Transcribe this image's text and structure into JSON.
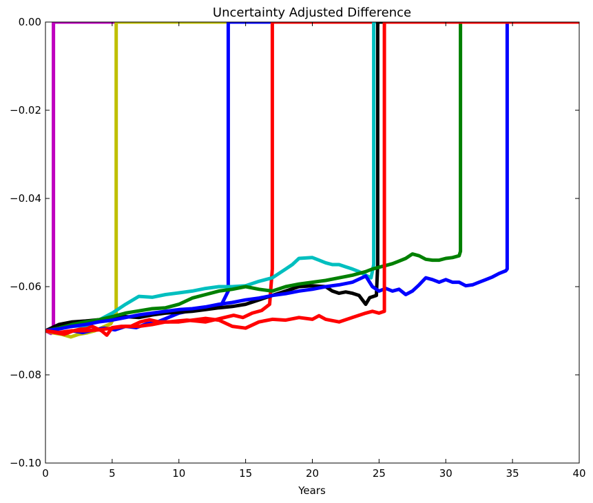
{
  "chart_data": {
    "type": "line",
    "title": "Uncertainty Adjusted Difference",
    "xlabel": "Years",
    "ylabel": "",
    "xlim": [
      0,
      40
    ],
    "ylim": [
      -0.1,
      0.0
    ],
    "xticks": [
      0,
      5,
      10,
      15,
      20,
      25,
      30,
      35,
      40
    ],
    "xtick_labels": [
      "0",
      "5",
      "10",
      "15",
      "20",
      "25",
      "30",
      "35",
      "40"
    ],
    "yticks": [
      0.0,
      -0.02,
      -0.04,
      -0.06,
      -0.08,
      -0.1
    ],
    "ytick_labels": [
      "0.00",
      "−0.02",
      "−0.04",
      "−0.06",
      "−0.08",
      "−0.10"
    ],
    "grid": false,
    "series": [
      {
        "color": "#bf00bf",
        "x": [
          0.0,
          0.2,
          0.4,
          0.55,
          0.6,
          0.6,
          40.0
        ],
        "y": [
          -0.07,
          -0.0703,
          -0.0706,
          -0.0702,
          -0.07,
          0.0,
          0.0
        ]
      },
      {
        "color": "#bfbf00",
        "x": [
          0.0,
          0.6,
          1.2,
          1.9,
          2.5,
          3.1,
          3.7,
          4.3,
          4.9,
          5.3,
          5.3,
          40.0
        ],
        "y": [
          -0.07,
          -0.0705,
          -0.0708,
          -0.0714,
          -0.0708,
          -0.0705,
          -0.07,
          -0.0692,
          -0.0684,
          -0.066,
          0.0,
          0.0
        ]
      },
      {
        "color": "#0000ff",
        "x": [
          0.0,
          0.6,
          1.2,
          2.0,
          2.8,
          3.6,
          4.4,
          5.2,
          6.0,
          6.8,
          7.6,
          8.4,
          9.2,
          10.0,
          10.8,
          11.6,
          12.4,
          13.2,
          13.7,
          13.7,
          40.0
        ],
        "y": [
          -0.07,
          -0.0702,
          -0.0706,
          -0.07,
          -0.0704,
          -0.0698,
          -0.0694,
          -0.0698,
          -0.069,
          -0.0693,
          -0.0684,
          -0.068,
          -0.067,
          -0.066,
          -0.0655,
          -0.065,
          -0.0646,
          -0.064,
          -0.061,
          0.0,
          0.0
        ]
      },
      {
        "color": "#ff0000",
        "x": [
          0.0,
          0.7,
          1.4,
          2.1,
          2.8,
          3.5,
          4.2,
          4.6,
          5.0,
          5.7,
          6.4,
          7.1,
          7.8,
          8.5,
          9.2,
          9.9,
          10.6,
          11.3,
          12.0,
          12.7,
          13.4,
          14.1,
          14.8,
          15.5,
          16.2,
          16.8,
          17.0,
          17.0,
          40.0
        ],
        "y": [
          -0.07,
          -0.0704,
          -0.0708,
          -0.07,
          -0.0695,
          -0.069,
          -0.07,
          -0.071,
          -0.0693,
          -0.069,
          -0.069,
          -0.068,
          -0.0675,
          -0.068,
          -0.068,
          -0.0678,
          -0.0676,
          -0.0678,
          -0.068,
          -0.0675,
          -0.067,
          -0.0665,
          -0.067,
          -0.066,
          -0.0654,
          -0.064,
          -0.056,
          0.0,
          0.0
        ]
      },
      {
        "color": "#00bfbf",
        "x": [
          0.0,
          1.0,
          2.0,
          3.0,
          4.0,
          5.0,
          6.0,
          7.0,
          8.0,
          9.0,
          10.0,
          11.0,
          12.0,
          13.0,
          14.0,
          15.0,
          16.0,
          17.0,
          17.5,
          18.0,
          18.5,
          19.0,
          19.5,
          20.0,
          20.5,
          21.0,
          21.5,
          22.0,
          22.5,
          23.0,
          23.5,
          24.0,
          24.4,
          24.6,
          24.6,
          40.0
        ],
        "y": [
          -0.07,
          -0.0694,
          -0.069,
          -0.0688,
          -0.0676,
          -0.066,
          -0.064,
          -0.0622,
          -0.0624,
          -0.0618,
          -0.0614,
          -0.061,
          -0.0604,
          -0.06,
          -0.06,
          -0.0598,
          -0.0588,
          -0.058,
          -0.057,
          -0.056,
          -0.055,
          -0.0536,
          -0.0535,
          -0.0534,
          -0.054,
          -0.0546,
          -0.055,
          -0.055,
          -0.0555,
          -0.056,
          -0.0566,
          -0.0574,
          -0.058,
          -0.055,
          0.0,
          0.0
        ]
      },
      {
        "color": "#000000",
        "x": [
          0.0,
          1.0,
          2.0,
          3.0,
          4.0,
          5.0,
          6.0,
          7.0,
          8.0,
          9.0,
          10.0,
          11.0,
          12.0,
          13.0,
          14.0,
          15.0,
          16.0,
          17.0,
          18.0,
          19.0,
          20.0,
          21.0,
          21.5,
          22.0,
          22.5,
          23.0,
          23.5,
          24.0,
          24.3,
          24.8,
          24.9,
          24.9,
          40.0
        ],
        "y": [
          -0.07,
          -0.0686,
          -0.068,
          -0.0678,
          -0.0675,
          -0.0672,
          -0.0668,
          -0.067,
          -0.0664,
          -0.066,
          -0.0658,
          -0.0656,
          -0.0652,
          -0.0648,
          -0.0645,
          -0.064,
          -0.063,
          -0.062,
          -0.061,
          -0.06,
          -0.0598,
          -0.06,
          -0.061,
          -0.0615,
          -0.0612,
          -0.0615,
          -0.062,
          -0.064,
          -0.0625,
          -0.062,
          -0.055,
          0.0,
          0.0
        ]
      },
      {
        "color": "#008000",
        "x": [
          0.0,
          1.0,
          2.0,
          3.0,
          4.0,
          5.0,
          6.0,
          7.0,
          8.0,
          9.0,
          10.0,
          11.0,
          12.0,
          13.0,
          14.0,
          15.0,
          16.0,
          17.0,
          18.0,
          19.0,
          20.0,
          21.0,
          22.0,
          23.0,
          24.0,
          24.5,
          25.0,
          25.5,
          26.0,
          26.5,
          27.0,
          27.5,
          28.0,
          28.5,
          29.0,
          29.5,
          30.0,
          30.5,
          31.0,
          31.1,
          31.1,
          40.0
        ],
        "y": [
          -0.07,
          -0.0694,
          -0.0686,
          -0.068,
          -0.0675,
          -0.0668,
          -0.066,
          -0.0655,
          -0.065,
          -0.0648,
          -0.064,
          -0.0626,
          -0.0618,
          -0.061,
          -0.0606,
          -0.06,
          -0.0606,
          -0.061,
          -0.06,
          -0.0594,
          -0.059,
          -0.0586,
          -0.058,
          -0.0574,
          -0.0566,
          -0.056,
          -0.0556,
          -0.0552,
          -0.0548,
          -0.0542,
          -0.0536,
          -0.0526,
          -0.053,
          -0.0538,
          -0.054,
          -0.054,
          -0.0536,
          -0.0534,
          -0.053,
          -0.052,
          0.0,
          0.0
        ]
      },
      {
        "color": "#0000ff",
        "x": [
          0.0,
          1.0,
          2.0,
          3.0,
          4.0,
          5.0,
          6.0,
          7.0,
          8.0,
          9.0,
          10.0,
          11.0,
          12.0,
          13.0,
          14.0,
          15.0,
          16.0,
          17.0,
          18.0,
          19.0,
          20.0,
          21.0,
          22.0,
          23.0,
          24.0,
          24.5,
          25.0,
          25.5,
          26.0,
          26.5,
          27.0,
          27.5,
          28.0,
          28.5,
          29.0,
          29.5,
          30.0,
          30.5,
          31.0,
          31.5,
          32.0,
          32.5,
          33.0,
          33.5,
          34.0,
          34.5,
          34.6,
          34.6,
          40.0
        ],
        "y": [
          -0.07,
          -0.0696,
          -0.069,
          -0.0686,
          -0.068,
          -0.0676,
          -0.067,
          -0.0664,
          -0.066,
          -0.0656,
          -0.0652,
          -0.065,
          -0.0646,
          -0.064,
          -0.0636,
          -0.063,
          -0.0626,
          -0.062,
          -0.0616,
          -0.061,
          -0.0606,
          -0.06,
          -0.0596,
          -0.059,
          -0.0576,
          -0.06,
          -0.061,
          -0.0604,
          -0.061,
          -0.0606,
          -0.0618,
          -0.061,
          -0.0596,
          -0.058,
          -0.0584,
          -0.059,
          -0.0584,
          -0.059,
          -0.059,
          -0.0598,
          -0.0596,
          -0.059,
          -0.0584,
          -0.0578,
          -0.057,
          -0.0564,
          -0.056,
          0.0,
          0.0
        ]
      },
      {
        "color": "#ff0000",
        "x": [
          0.0,
          1.0,
          2.0,
          3.0,
          4.0,
          5.0,
          6.0,
          7.0,
          8.0,
          9.0,
          10.0,
          11.0,
          12.0,
          13.0,
          14.0,
          15.0,
          16.0,
          17.0,
          18.0,
          19.0,
          20.0,
          20.5,
          21.0,
          22.0,
          23.0,
          24.0,
          24.5,
          25.0,
          25.4,
          25.4,
          40.0
        ],
        "y": [
          -0.07,
          -0.0704,
          -0.07,
          -0.07,
          -0.0698,
          -0.0694,
          -0.069,
          -0.069,
          -0.0686,
          -0.068,
          -0.068,
          -0.0676,
          -0.0672,
          -0.0676,
          -0.069,
          -0.0694,
          -0.068,
          -0.0674,
          -0.0676,
          -0.067,
          -0.0674,
          -0.0666,
          -0.0674,
          -0.068,
          -0.067,
          -0.066,
          -0.0656,
          -0.066,
          -0.0656,
          0.0,
          0.0
        ]
      }
    ]
  }
}
